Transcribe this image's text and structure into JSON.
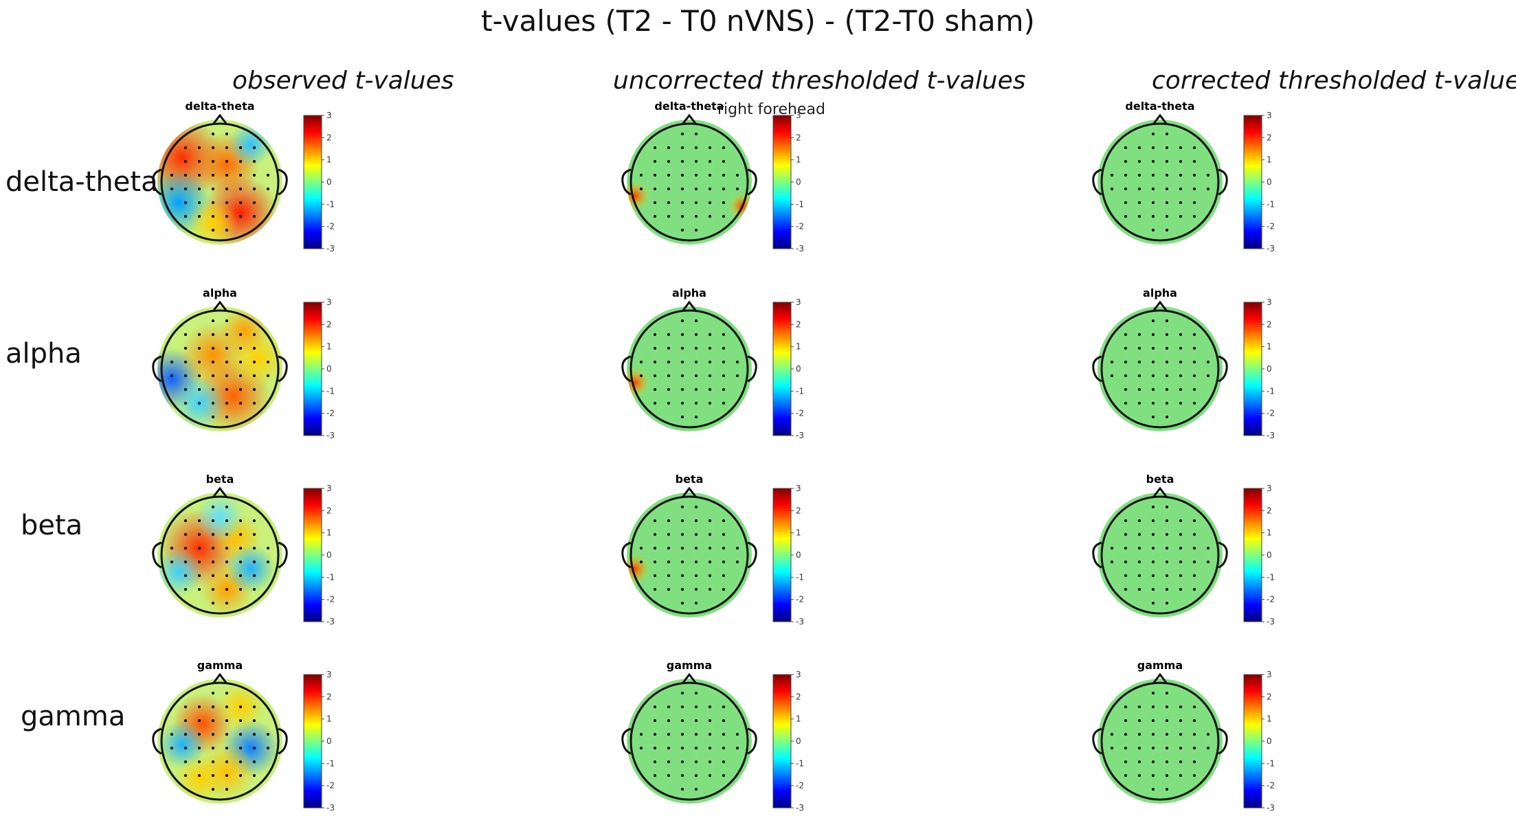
{
  "title": "t-values (T2 - T0 nVNS) - (T2-T0 sham)",
  "columns": [
    {
      "label": "observed t-values",
      "mode": "observed"
    },
    {
      "label": "uncorrected thresholded  t-values",
      "mode": "uncorrected"
    },
    {
      "label": "corrected thresholded  t-values",
      "mode": "corrected"
    }
  ],
  "rows": [
    {
      "label": "delta-theta",
      "band": "delta-theta"
    },
    {
      "label": "alpha",
      "band": "alpha"
    },
    {
      "label": "beta",
      "band": "beta"
    },
    {
      "label": "gamma",
      "band": "gamma"
    }
  ],
  "annotation": "right forehead",
  "colorbar": {
    "ticks": [
      "3",
      "2",
      "1",
      "0",
      "-1",
      "-2",
      "-3"
    ],
    "colors": [
      "#800000",
      "#ff0000",
      "#ff8000",
      "#ffff00",
      "#80ff80",
      "#00ffff",
      "#0080ff",
      "#0000ff",
      "#000080"
    ]
  },
  "colors": {
    "neutral_fill": "#80e080",
    "head_outline": "#111111",
    "electrode": "#000000"
  }
}
